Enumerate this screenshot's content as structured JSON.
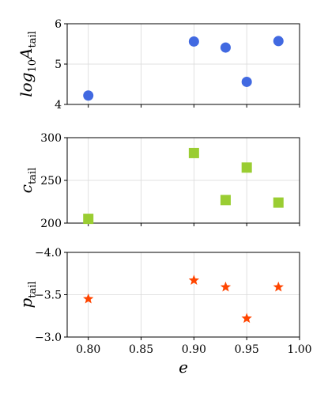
{
  "chart_data": [
    {
      "type": "scatter",
      "ylabel_main": "log",
      "ylabel_sub_base": "10",
      "ylabel_var": "A",
      "ylabel_var_sub": "tail",
      "x": [
        0.8,
        0.9,
        0.93,
        0.95,
        0.98
      ],
      "y": [
        4.22,
        5.56,
        5.41,
        4.56,
        5.57
      ],
      "xlim": [
        0.78,
        1.0
      ],
      "ylim": [
        4.0,
        6.0
      ],
      "yticks": [
        4,
        5,
        6
      ],
      "ytick_labels": [
        "4",
        "5",
        "6"
      ],
      "marker": "circle",
      "color": "#4169e1",
      "grid": true
    },
    {
      "type": "scatter",
      "ylabel_var": "c",
      "ylabel_var_sub": "tail",
      "x": [
        0.8,
        0.9,
        0.93,
        0.95,
        0.98
      ],
      "y": [
        205,
        282,
        227,
        265,
        224
      ],
      "xlim": [
        0.78,
        1.0
      ],
      "ylim": [
        200,
        300
      ],
      "yticks": [
        200,
        250,
        300
      ],
      "ytick_labels": [
        "200",
        "250",
        "300"
      ],
      "marker": "square",
      "color": "#9acd32",
      "grid": true
    },
    {
      "type": "scatter",
      "ylabel_var": "p",
      "ylabel_var_sub": "tail",
      "x": [
        0.8,
        0.9,
        0.93,
        0.95,
        0.98
      ],
      "y": [
        -3.45,
        -3.67,
        -3.59,
        -3.22,
        -3.59
      ],
      "xlim": [
        0.78,
        1.0
      ],
      "ylim": [
        -4.0,
        -3.0
      ],
      "inverted_y": true,
      "yticks": [
        -4.0,
        -3.5,
        -3.0
      ],
      "ytick_labels": [
        "−4.0",
        "−3.5",
        "−3.0"
      ],
      "marker": "star",
      "color": "#ff4500",
      "grid": true
    }
  ],
  "x_axis": {
    "label": "e",
    "ticks": [
      0.8,
      0.85,
      0.9,
      0.95,
      1.0
    ],
    "tick_labels": [
      "0.80",
      "0.85",
      "0.90",
      "0.95",
      "1.00"
    ]
  }
}
